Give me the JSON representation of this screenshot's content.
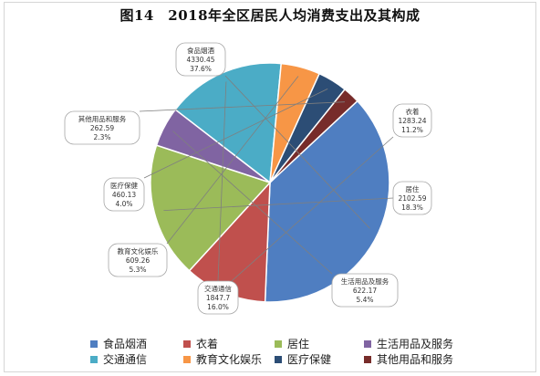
{
  "title": "图14　2018年全区居民人均消费支出及其构成",
  "chart_data": {
    "type": "pie",
    "title": "图14　2018年全区居民人均消费支出及其构成",
    "start_angle_deg": 47,
    "legend_position": "bottom",
    "slices": [
      {
        "name": "食品烟酒",
        "label": "食品烟酒",
        "value": 4330.45,
        "value_label": "4330.45",
        "pct": 37.6,
        "pct_label": "37.6%",
        "color": "#4f7ec1"
      },
      {
        "name": "衣着",
        "label": "衣着",
        "value": 1283.24,
        "value_label": "1283.24",
        "pct": 11.2,
        "pct_label": "11.2%",
        "color": "#c0504d"
      },
      {
        "name": "居住",
        "label": "居住",
        "value": 2102.59,
        "value_label": "2102.59",
        "pct": 18.3,
        "pct_label": "18.3%",
        "color": "#9bbb59"
      },
      {
        "name": "生活用品及服务",
        "label": "生活用品及服务",
        "value": 622.17,
        "value_label": "622.17",
        "pct": 5.4,
        "pct_label": "5.4%",
        "color": "#8064a2"
      },
      {
        "name": "交通通信",
        "label": "交通通信",
        "value": 1847.7,
        "value_label": "1847.7",
        "pct": 16.0,
        "pct_label": "16.0%",
        "color": "#4bacc6"
      },
      {
        "name": "教育文化娱乐",
        "label": "教育文化娱乐",
        "value": 609.26,
        "value_label": "609.26",
        "pct": 5.3,
        "pct_label": "5.3%",
        "color": "#f79646"
      },
      {
        "name": "医疗保健",
        "label": "医疗保健",
        "value": 460.13,
        "value_label": "460.13",
        "pct": 4.0,
        "pct_label": "4.0%",
        "color": "#2c4d75"
      },
      {
        "name": "其他用品和服务",
        "label": "其他用品和服务",
        "value": 262.59,
        "value_label": "262.59",
        "pct": 2.3,
        "pct_label": "2.3%",
        "color": "#772c2a"
      }
    ]
  },
  "legend": {
    "items": [
      "食品烟酒",
      "衣着",
      "居住",
      "生活用品及服务",
      "交通通信",
      "教育文化娱乐",
      "医疗保健",
      "其他用品和服务"
    ]
  }
}
